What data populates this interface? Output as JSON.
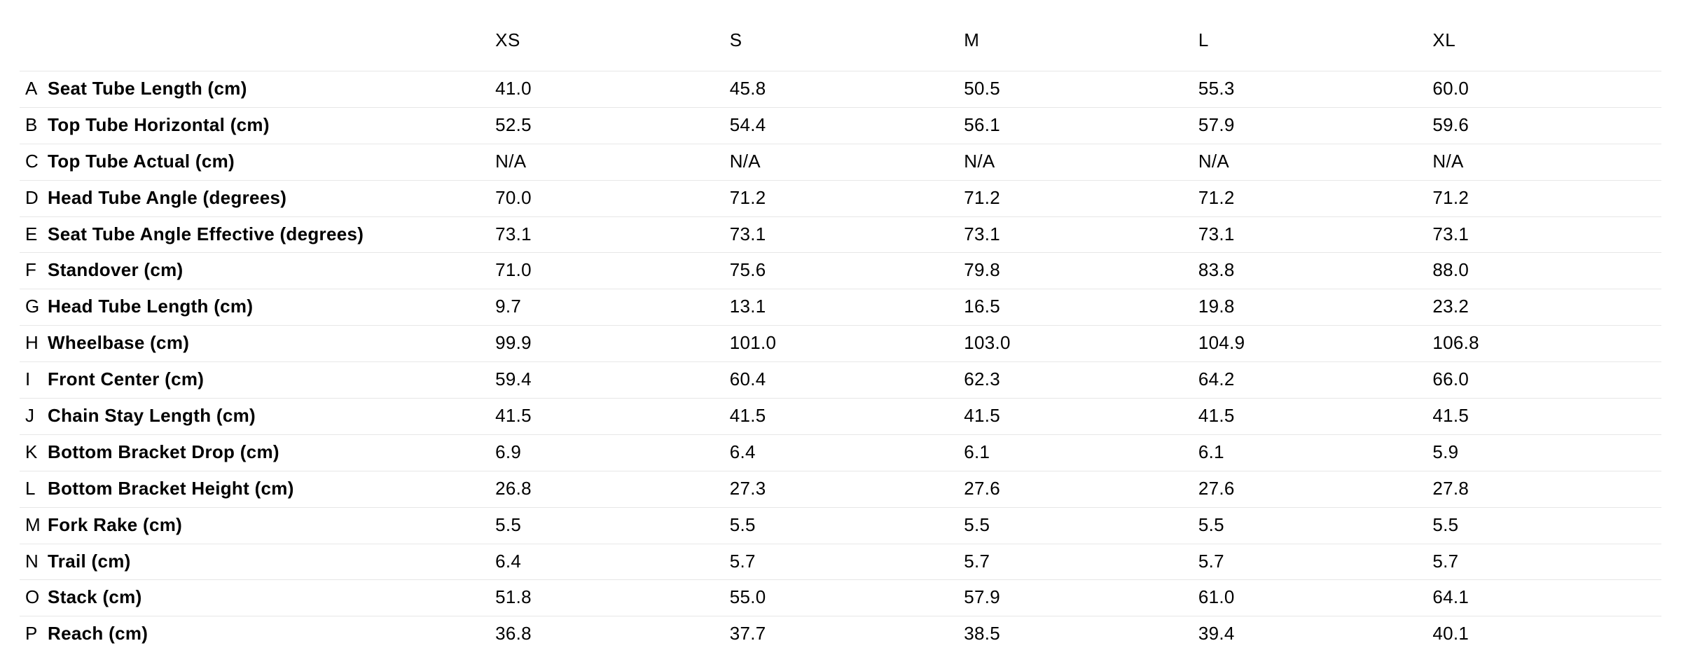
{
  "table": {
    "type": "table",
    "background_color": "#ffffff",
    "grid_color": "#e7e7e7",
    "text_color": "#000000",
    "header_fontsize": 26,
    "header_fontweight": 400,
    "cell_fontsize": 26,
    "label_fontweight": 700,
    "value_fontweight": 400,
    "sizes": [
      "XS",
      "S",
      "M",
      "L",
      "XL"
    ],
    "rows": [
      {
        "letter": "A",
        "label": "Seat Tube Length (cm)",
        "values": [
          "41.0",
          "45.8",
          "50.5",
          "55.3",
          "60.0"
        ]
      },
      {
        "letter": "B",
        "label": "Top Tube Horizontal (cm)",
        "values": [
          "52.5",
          "54.4",
          "56.1",
          "57.9",
          "59.6"
        ]
      },
      {
        "letter": "C",
        "label": "Top Tube Actual (cm)",
        "values": [
          "N/A",
          "N/A",
          "N/A",
          "N/A",
          "N/A"
        ]
      },
      {
        "letter": "D",
        "label": "Head Tube Angle (degrees)",
        "values": [
          "70.0",
          "71.2",
          "71.2",
          "71.2",
          "71.2"
        ]
      },
      {
        "letter": "E",
        "label": "Seat Tube Angle Effective (degrees)",
        "values": [
          "73.1",
          "73.1",
          "73.1",
          "73.1",
          "73.1"
        ]
      },
      {
        "letter": "F",
        "label": "Standover (cm)",
        "values": [
          "71.0",
          "75.6",
          "79.8",
          "83.8",
          "88.0"
        ]
      },
      {
        "letter": "G",
        "label": "Head Tube Length (cm)",
        "values": [
          "9.7",
          "13.1",
          "16.5",
          "19.8",
          "23.2"
        ]
      },
      {
        "letter": "H",
        "label": "Wheelbase (cm)",
        "values": [
          "99.9",
          "101.0",
          "103.0",
          "104.9",
          "106.8"
        ]
      },
      {
        "letter": "I",
        "label": "Front Center (cm)",
        "values": [
          "59.4",
          "60.4",
          "62.3",
          "64.2",
          "66.0"
        ]
      },
      {
        "letter": "J",
        "label": "Chain Stay Length (cm)",
        "values": [
          "41.5",
          "41.5",
          "41.5",
          "41.5",
          "41.5"
        ]
      },
      {
        "letter": "K",
        "label": "Bottom Bracket Drop (cm)",
        "values": [
          "6.9",
          "6.4",
          "6.1",
          "6.1",
          "5.9"
        ]
      },
      {
        "letter": "L",
        "label": "Bottom Bracket Height (cm)",
        "values": [
          "26.8",
          "27.3",
          "27.6",
          "27.6",
          "27.8"
        ]
      },
      {
        "letter": "M",
        "label": "Fork Rake (cm)",
        "values": [
          "5.5",
          "5.5",
          "5.5",
          "5.5",
          "5.5"
        ]
      },
      {
        "letter": "N",
        "label": "Trail (cm)",
        "values": [
          "6.4",
          "5.7",
          "5.7",
          "5.7",
          "5.7"
        ]
      },
      {
        "letter": "O",
        "label": "Stack (cm)",
        "values": [
          "51.8",
          "55.0",
          "57.9",
          "61.0",
          "64.1"
        ]
      },
      {
        "letter": "P",
        "label": "Reach (cm)",
        "values": [
          "36.8",
          "37.7",
          "38.5",
          "39.4",
          "40.1"
        ]
      }
    ]
  }
}
